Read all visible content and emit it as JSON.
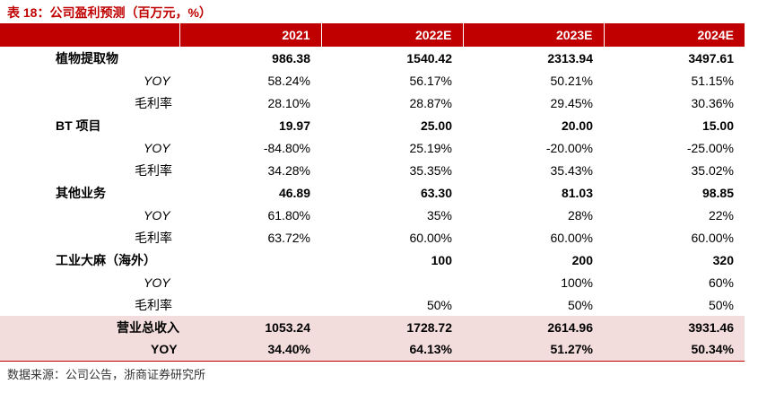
{
  "caption": "表 18：公司盈利预测（百万元，%）",
  "header": [
    "",
    "2021",
    "2022E",
    "2023E",
    "2024E"
  ],
  "rows": [
    {
      "kind": "main",
      "label": "植物提取物",
      "v": [
        "986.38",
        "1540.42",
        "2313.94",
        "3497.61"
      ]
    },
    {
      "kind": "sub",
      "label": "YOY",
      "v": [
        "58.24%",
        "56.17%",
        "50.21%",
        "51.15%"
      ]
    },
    {
      "kind": "sub2",
      "label": "毛利率",
      "v": [
        "28.10%",
        "28.87%",
        "29.45%",
        "30.36%"
      ]
    },
    {
      "kind": "main",
      "label": "BT 项目",
      "v": [
        "19.97",
        "25.00",
        "20.00",
        "15.00"
      ]
    },
    {
      "kind": "sub",
      "label": "YOY",
      "v": [
        "-84.80%",
        "25.19%",
        "-20.00%",
        "-25.00%"
      ]
    },
    {
      "kind": "sub2",
      "label": "毛利率",
      "v": [
        "34.28%",
        "35.35%",
        "35.43%",
        "35.02%"
      ]
    },
    {
      "kind": "main",
      "label": "其他业务",
      "v": [
        "46.89",
        "63.30",
        "81.03",
        "98.85"
      ]
    },
    {
      "kind": "sub",
      "label": "YOY",
      "v": [
        "61.80%",
        "35%",
        "28%",
        "22%"
      ]
    },
    {
      "kind": "sub2",
      "label": "毛利率",
      "v": [
        "63.72%",
        "60.00%",
        "60.00%",
        "60.00%"
      ]
    },
    {
      "kind": "main",
      "label": "工业大麻（海外）",
      "v": [
        "",
        "100",
        "200",
        "320"
      ]
    },
    {
      "kind": "sub",
      "label": "YOY",
      "v": [
        "",
        "",
        "100%",
        "60%"
      ]
    },
    {
      "kind": "sub2",
      "label": "毛利率",
      "v": [
        "",
        "50%",
        "50%",
        "50%"
      ]
    },
    {
      "kind": "total",
      "label": "营业总收入",
      "v": [
        "1053.24",
        "1728.72",
        "2614.96",
        "3931.46"
      ]
    },
    {
      "kind": "totalyoy",
      "label": "YOY",
      "v": [
        "34.40%",
        "64.13%",
        "51.27%",
        "50.34%"
      ]
    }
  ],
  "source": "数据来源：公司公告，浙商证券研究所",
  "colors": {
    "accent": "#c00000",
    "total_bg": "#f2dcdc"
  }
}
